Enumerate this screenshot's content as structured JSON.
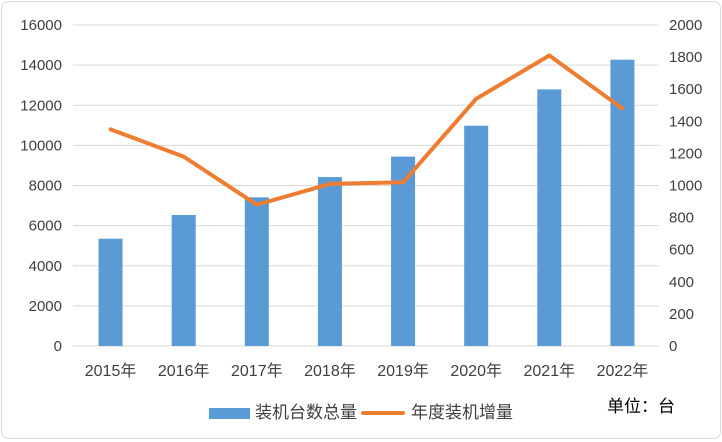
{
  "chart_data": {
    "type": "combo-bar-line",
    "categories": [
      "2015年",
      "2016年",
      "2017年",
      "2018年",
      "2019年",
      "2020年",
      "2021年",
      "2022年"
    ],
    "series": [
      {
        "name": "装机台数总量",
        "type": "bar",
        "axis": "left",
        "color": "#5B9BD5",
        "values": [
          5350,
          6530,
          7410,
          8420,
          9440,
          10980,
          12790,
          14270
        ]
      },
      {
        "name": "年度装机增量",
        "type": "line",
        "axis": "right",
        "color": "#ED7D31",
        "values": [
          1350,
          1180,
          880,
          1010,
          1020,
          1540,
          1810,
          1480
        ]
      }
    ],
    "left_axis": {
      "min": 0,
      "max": 16000,
      "step": 2000
    },
    "right_axis": {
      "min": 0,
      "max": 2000,
      "step": 200
    },
    "grid": true,
    "legend_position": "bottom-center",
    "unit_label": "单位：台",
    "title": ""
  },
  "style": {
    "gridline_color": "#D9D9D9",
    "axis_text_color": "#404040",
    "unit_text_color": "#000000",
    "frame_border_color": "#D9D9D9",
    "background": "#FFFFFF"
  }
}
